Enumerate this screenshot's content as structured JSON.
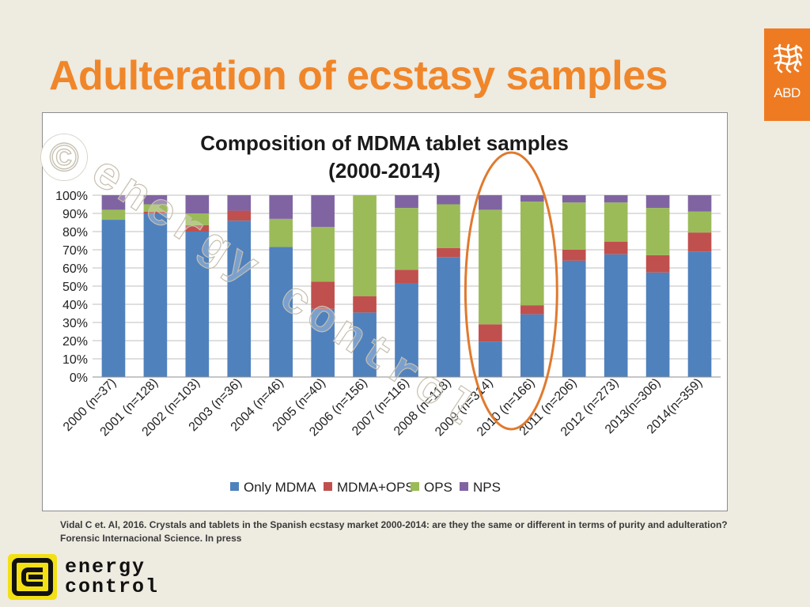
{
  "slide": {
    "title": "Adulteration of ecstasy samples",
    "citation": "Vidal C et. Al, 2016. Crystals and tablets in the Spanish ecstasy market 2000-2014: are they the same or different in terms of purity and adulteration? Forensic Internacional Science. In press"
  },
  "logos": {
    "abd_text": "ABD",
    "energy_control_line1": "energy",
    "energy_control_line2": "control"
  },
  "watermark": {
    "symbol": "©",
    "text": "energy control"
  },
  "colors": {
    "title": "#f0862a",
    "abd_background": "#ee7b22",
    "highlight_ellipse": "#e07a2e",
    "only_mdma": "#4f81bd",
    "mdma_ops": "#c0504d",
    "ops": "#9bbb59",
    "nps": "#8064a2"
  },
  "chart_data": {
    "type": "bar",
    "stacked": true,
    "percent": true,
    "title_lines": [
      "Composition of MDMA tablet samples",
      "(2000-2014)"
    ],
    "categories": [
      "2000 (n=37)",
      "2001 (n=128)",
      "2002 (n=103)",
      "2003 (n=36)",
      "2004 (n=46)",
      "2005 (n=40)",
      "2006 (n=156)",
      "2007 (n=116)",
      "2008 (n=118)",
      "2009 (n=314)",
      "2010 (n=166)",
      "2011 (n=206)",
      "2012 (n=273)",
      "2013(n=306)",
      "2014(n=359)"
    ],
    "series": [
      {
        "name": "Only MDMA",
        "color": "#4f81bd",
        "values": [
          86.5,
          90,
          80,
          86,
          71.5,
          37.5,
          35.5,
          51.5,
          66,
          19.5,
          34.5,
          64,
          67.5,
          57.5,
          69
        ]
      },
      {
        "name": "MDMA+OPS",
        "color": "#c0504d",
        "values": [
          0,
          1,
          3.5,
          5.5,
          0,
          15,
          9,
          7.5,
          5,
          9.5,
          5,
          6,
          7,
          9.5,
          10.5
        ]
      },
      {
        "name": "OPS",
        "color": "#9bbb59",
        "values": [
          5.5,
          4,
          6.5,
          0,
          15.5,
          30,
          55.5,
          34,
          24,
          63,
          57,
          26,
          21.5,
          26,
          11.5
        ]
      },
      {
        "name": "NPS",
        "color": "#8064a2",
        "values": [
          8,
          5,
          10,
          8.5,
          13,
          17.5,
          0,
          7,
          5,
          8,
          3.5,
          4,
          4,
          7,
          9
        ]
      }
    ],
    "yticks": [
      "0%",
      "10%",
      "20%",
      "30%",
      "40%",
      "50%",
      "60%",
      "70%",
      "80%",
      "90%",
      "100%"
    ],
    "ylim": [
      0,
      100
    ],
    "grid": true,
    "legend_position": "bottom",
    "highlight": {
      "shape": "ellipse",
      "categories": [
        "2009 (n=314)",
        "2010 (n=166)"
      ]
    }
  }
}
